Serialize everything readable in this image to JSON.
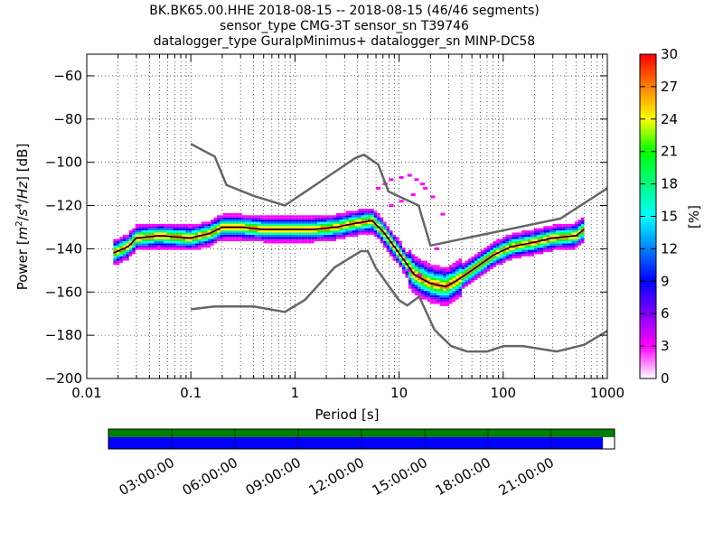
{
  "chart_data": {
    "type": "heatmap",
    "title_lines": [
      "BK.BK65.00.HHE   2018-08-15 -- 2018-08-15  (46/46 segments)",
      "sensor_type CMG-3T sensor_sn T39746",
      "datalogger_type GuralpMinimus+ datalogger_sn MINP-DC58"
    ],
    "xlabel": "Period [s]",
    "ylabel": "Power [m²/s⁴/Hz] [dB]",
    "ylabel_parts": {
      "prefix": "Power [",
      "unit_m": "m",
      "unit_m_exp": "2",
      "unit_sep1": "/",
      "unit_s": "s",
      "unit_s_exp": "4",
      "unit_sep2": "/",
      "unit_hz": "Hz",
      "suffix": "] [dB]"
    },
    "x_scale": "log",
    "xlim": [
      0.01,
      1000
    ],
    "ylim": [
      -200,
      -50
    ],
    "x_ticks": [
      0.01,
      0.1,
      1,
      10,
      100,
      1000
    ],
    "x_tick_labels": [
      "0.01",
      "0.1",
      "1",
      "10",
      "100",
      "1000"
    ],
    "y_ticks": [
      -60,
      -80,
      -100,
      -120,
      -140,
      -160,
      -180,
      -200
    ],
    "y_tick_labels": [
      "−60",
      "−80",
      "−100",
      "−120",
      "−140",
      "−160",
      "−180",
      "−200"
    ],
    "grid": true,
    "colorbar": {
      "label": "[%]",
      "range": [
        0,
        30
      ],
      "ticks": [
        0,
        3,
        6,
        9,
        12,
        15,
        18,
        21,
        24,
        27,
        30
      ],
      "tick_labels": [
        "0",
        "3",
        "6",
        "9",
        "12",
        "15",
        "18",
        "21",
        "24",
        "27",
        "30"
      ],
      "colors": [
        "#ffffff",
        "#ff00ff",
        "#8000ff",
        "#0000ff",
        "#0080ff",
        "#00ffff",
        "#00ff80",
        "#00ff00",
        "#ffff00",
        "#ff8000",
        "#ff0000"
      ]
    },
    "noise_model_color": "#666666",
    "nhnm": {
      "x": [
        0.1,
        0.17,
        0.22,
        0.4,
        0.8,
        3.8,
        4.6,
        6.3,
        7.9,
        15.4,
        20,
        354.8,
        1000
      ],
      "y": [
        -91.5,
        -97.4,
        -110.5,
        -115.5,
        -120,
        -98,
        -96.5,
        -101,
        -113.5,
        -120,
        -138.5,
        -126,
        -112
      ]
    },
    "nlnm": {
      "x": [
        0.1,
        0.17,
        0.4,
        0.8,
        1.24,
        2.4,
        4.3,
        5,
        6,
        10,
        12,
        15.6,
        21.9,
        31.6,
        45,
        70,
        101,
        154,
        328,
        600,
        1000
      ],
      "y": [
        -168,
        -166.7,
        -166.7,
        -169.2,
        -163.7,
        -148.6,
        -141.1,
        -141.1,
        -149,
        -163.8,
        -166.2,
        -162.1,
        -177.5,
        -185,
        -187.5,
        -187.5,
        -185,
        -185,
        -187.5,
        -184.4,
        -178
      ]
    },
    "median": {
      "x": [
        0.018,
        0.025,
        0.03,
        0.05,
        0.07,
        0.1,
        0.15,
        0.2,
        0.3,
        0.5,
        0.8,
        1.5,
        2.5,
        4,
        5.5,
        7,
        10,
        14,
        20,
        28,
        35,
        50,
        80,
        120,
        200,
        300,
        500,
        600
      ],
      "y": [
        -142,
        -139,
        -135,
        -134,
        -134.5,
        -135,
        -133,
        -130,
        -130,
        -131,
        -131,
        -131,
        -130,
        -128,
        -127,
        -132,
        -142,
        -152,
        -156,
        -157.5,
        -155,
        -150,
        -143,
        -139,
        -137,
        -135,
        -134,
        -131
      ]
    },
    "pdf_band_half_width_db": 6,
    "timeline": {
      "labels": [
        "03:00:00",
        "06:00:00",
        "09:00:00",
        "12:00:00",
        "15:00:00",
        "18:00:00",
        "21:00:00"
      ],
      "data_coverage_color": "#008000",
      "psd_coverage_color": "#0000ff",
      "psd_coverage_fraction": 0.977
    }
  }
}
